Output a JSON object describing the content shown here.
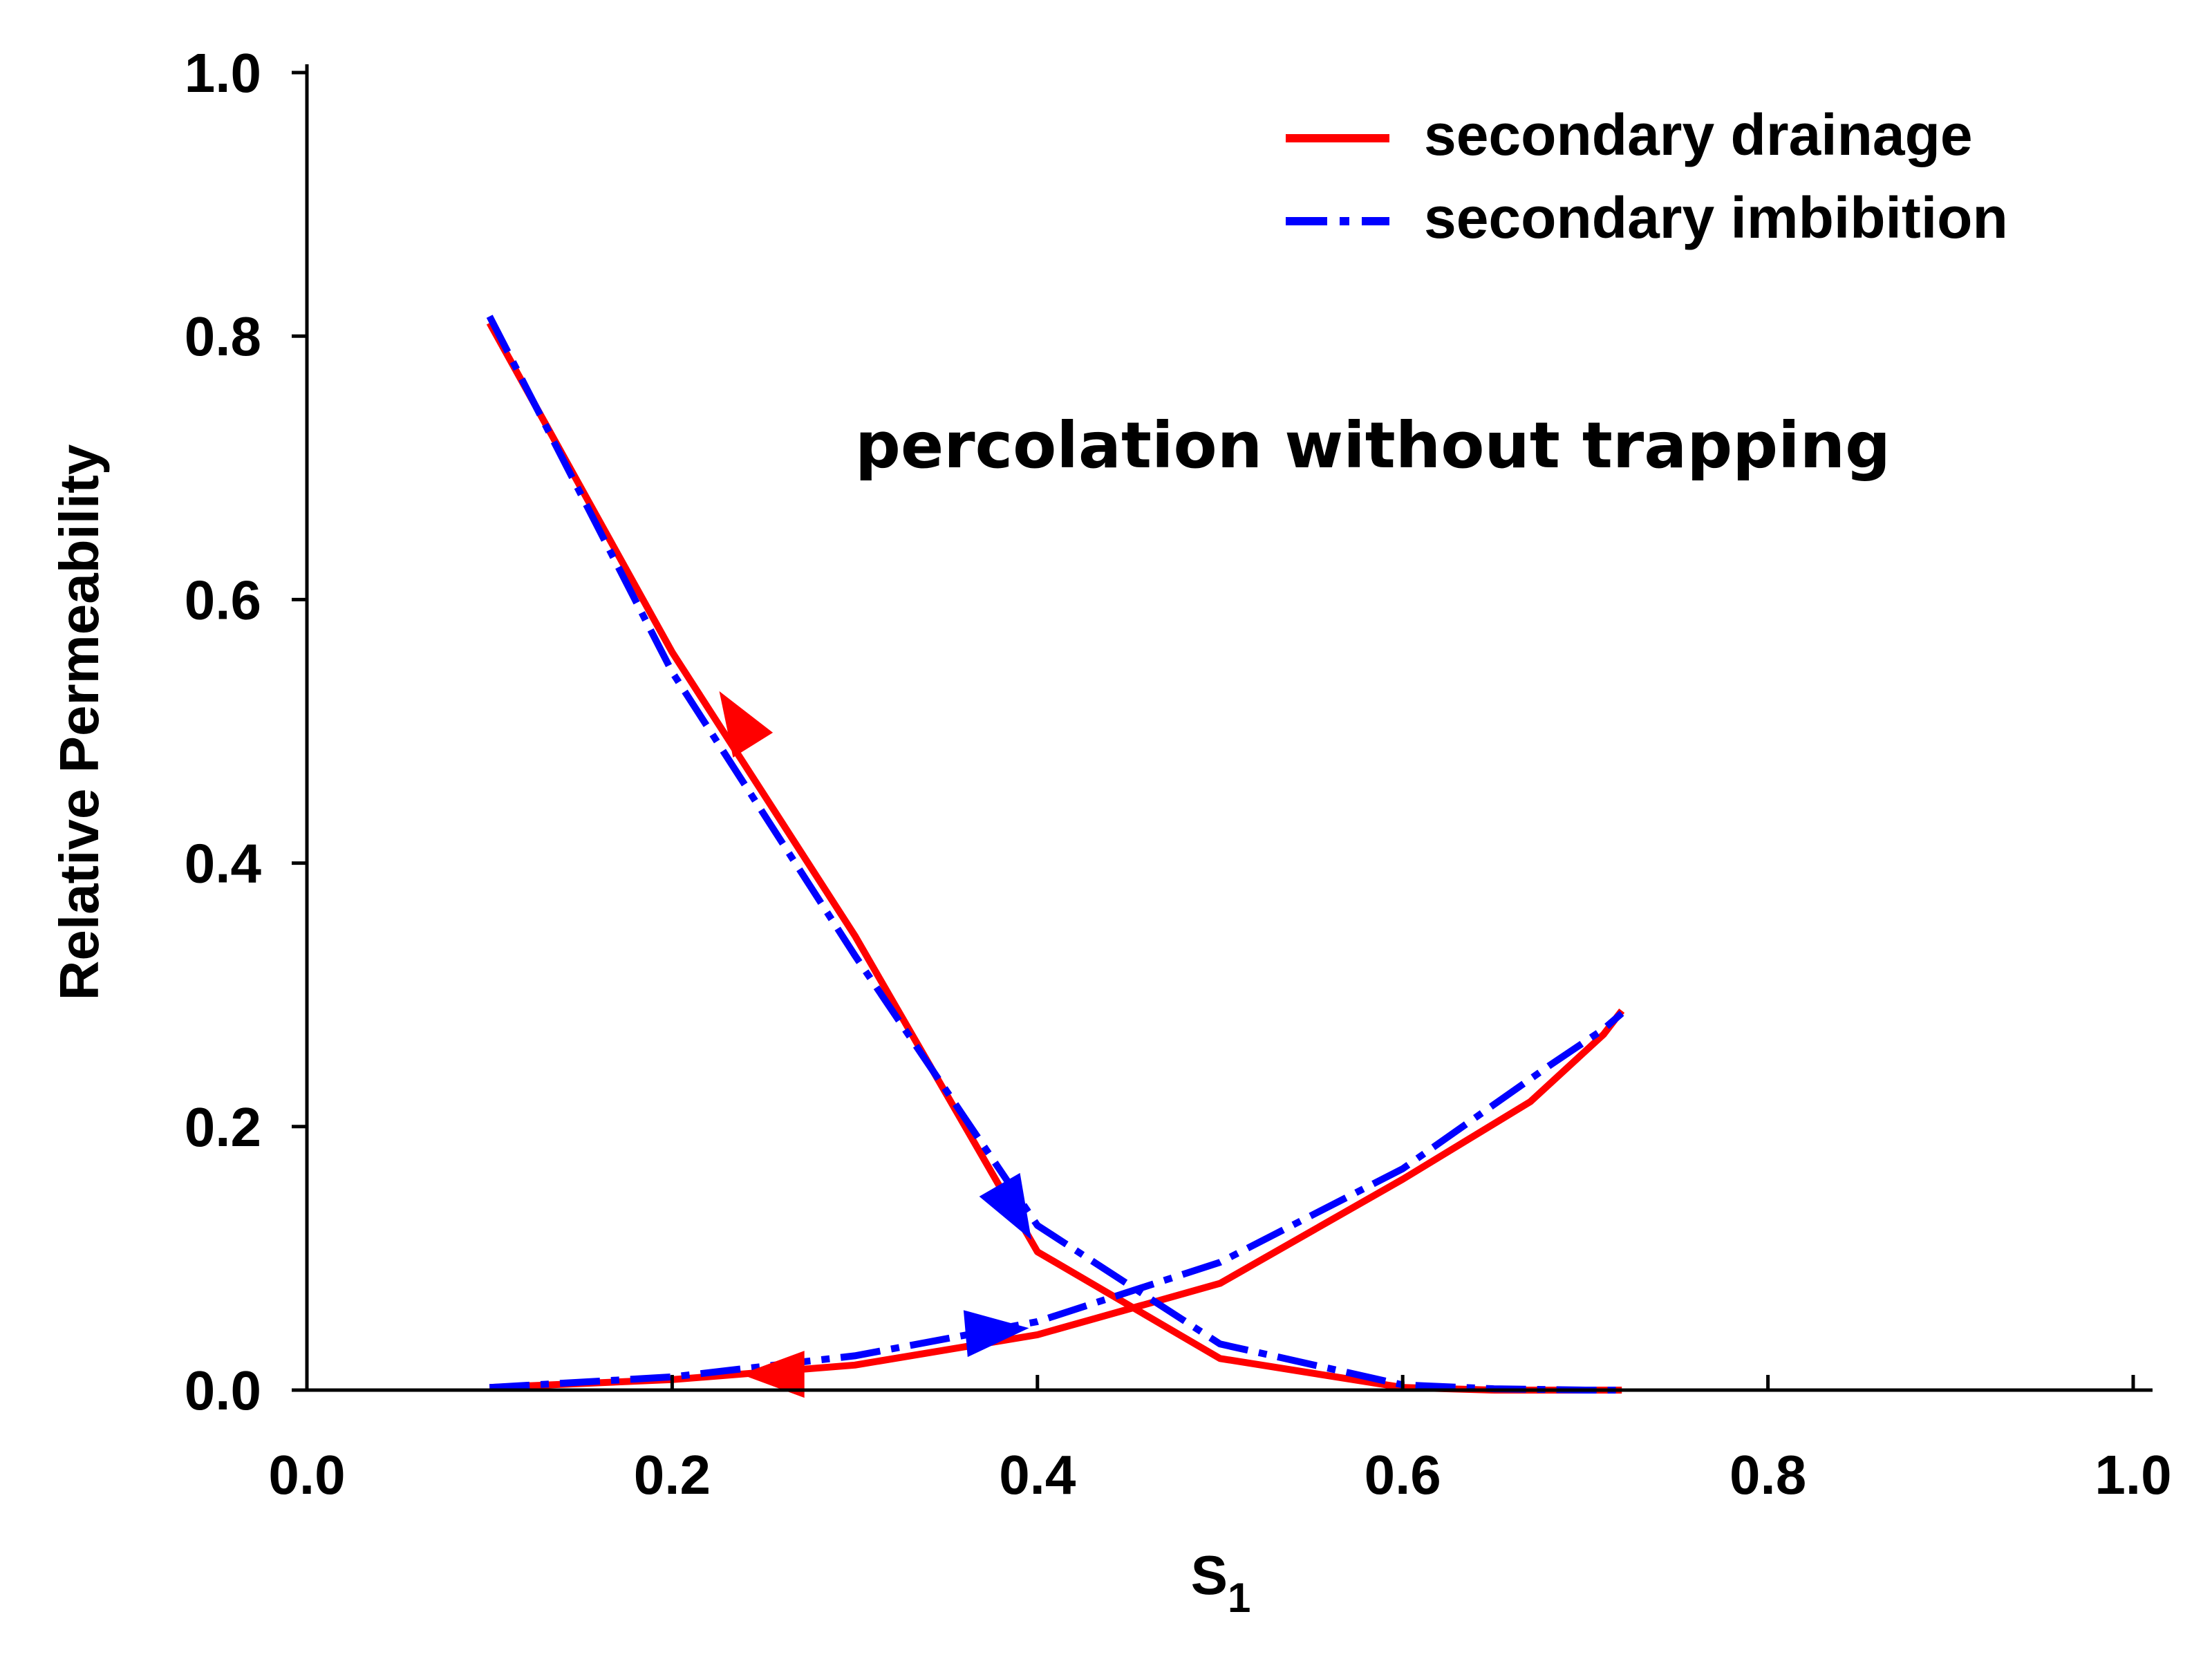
{
  "chart_data": {
    "type": "line",
    "title": "",
    "xlabel": "S",
    "xlabel_subscript": "1",
    "ylabel": "Relative Permeability",
    "xlim": [
      0.0,
      1.0
    ],
    "ylim": [
      0.0,
      1.0
    ],
    "xticks": [
      "0.0",
      "0.2",
      "0.4",
      "0.6",
      "0.8",
      "1.0"
    ],
    "yticks": [
      "0.0",
      "0.2",
      "0.4",
      "0.6",
      "0.8",
      "1.0"
    ],
    "grid": false,
    "legend_position": "top-right",
    "annotation": "percolation without trapping",
    "series": [
      {
        "name": "secondary drainage",
        "color": "#ff0000",
        "style": "solid",
        "curves": [
          {
            "x": [
              0.1,
              0.2,
              0.3,
              0.4,
              0.5,
              0.6,
              0.65,
              0.7,
              0.72
            ],
            "y": [
              0.81,
              0.56,
              0.345,
              0.105,
              0.024,
              0.002,
              0.0,
              0.0,
              0.0
            ]
          },
          {
            "x": [
              0.1,
              0.2,
              0.3,
              0.4,
              0.5,
              0.6,
              0.67,
              0.71,
              0.72
            ],
            "y": [
              0.002,
              0.008,
              0.019,
              0.042,
              0.081,
              0.16,
              0.219,
              0.27,
              0.288
            ]
          }
        ],
        "arrows": [
          {
            "x": 0.235,
            "y": 0.51,
            "angle_deg": -122
          },
          {
            "x": 0.255,
            "y": 0.012,
            "angle_deg": 180
          }
        ]
      },
      {
        "name": "secondary imbibition",
        "color": "#0000ff",
        "style": "dash-dot",
        "curves": [
          {
            "x": [
              0.1,
              0.2,
              0.3,
              0.4,
              0.5,
              0.6,
              0.65,
              0.7,
              0.72
            ],
            "y": [
              0.815,
              0.545,
              0.33,
              0.125,
              0.035,
              0.004,
              0.001,
              0.0,
              0.0
            ]
          },
          {
            "x": [
              0.1,
              0.2,
              0.3,
              0.4,
              0.5,
              0.6,
              0.68,
              0.71,
              0.72
            ],
            "y": [
              0.002,
              0.01,
              0.026,
              0.052,
              0.097,
              0.168,
              0.246,
              0.274,
              0.286
            ]
          }
        ],
        "arrows": [
          {
            "x": 0.388,
            "y": 0.135,
            "angle_deg": 60
          },
          {
            "x": 0.378,
            "y": 0.045,
            "angle_deg": -5
          }
        ]
      }
    ]
  }
}
